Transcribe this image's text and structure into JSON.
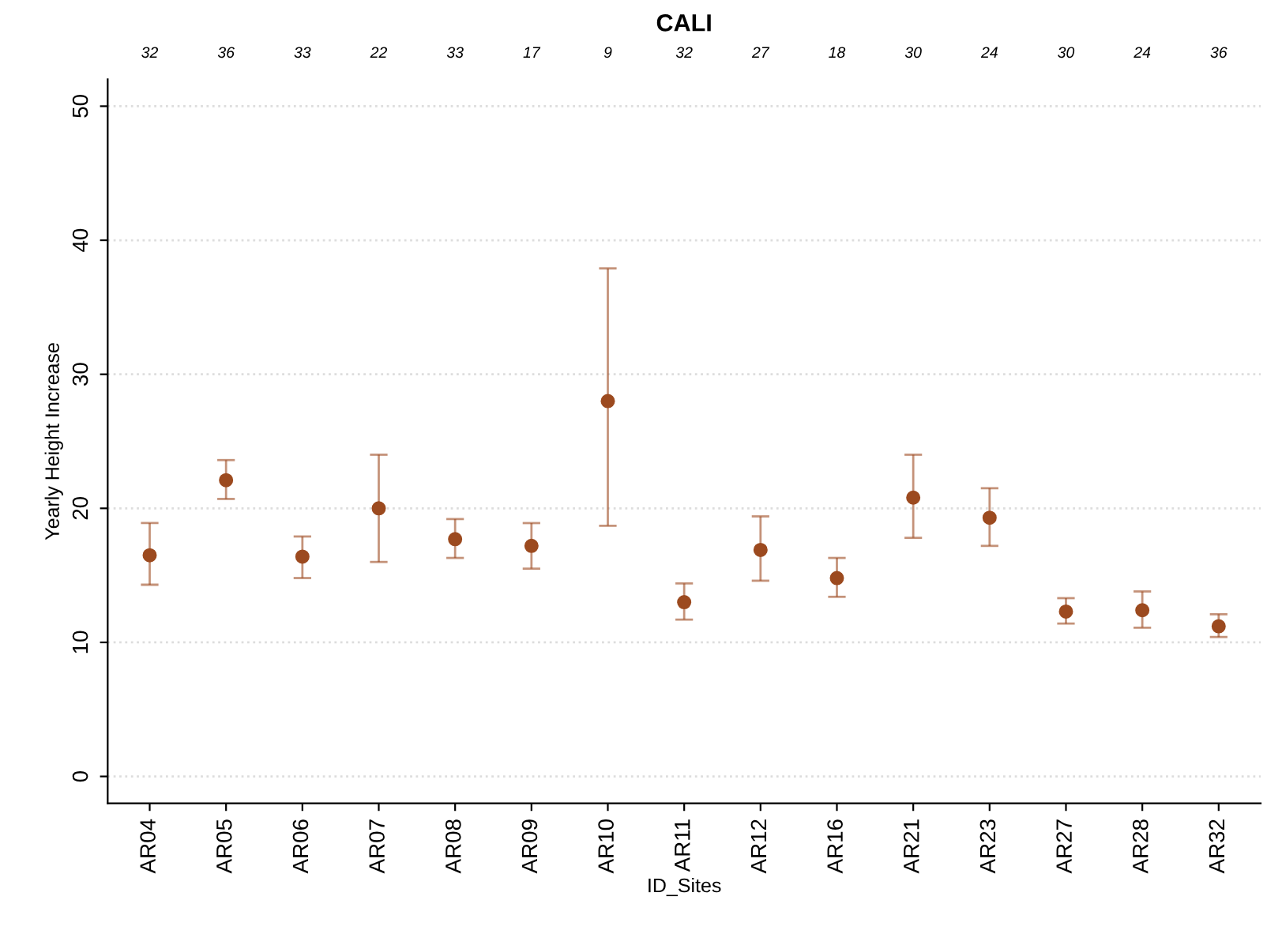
{
  "chart_data": {
    "type": "scatter",
    "title": "CALI",
    "xlabel": "ID_Sites",
    "ylabel": "Yearly Height Increase",
    "categories": [
      "AR04",
      "AR05",
      "AR06",
      "AR07",
      "AR08",
      "AR09",
      "AR10",
      "AR11",
      "AR12",
      "AR16",
      "AR21",
      "AR23",
      "AR27",
      "AR28",
      "AR32"
    ],
    "series": [
      {
        "color": "#9c4a1f",
        "values": [
          16.5,
          22.1,
          16.4,
          20.0,
          17.7,
          17.2,
          28.0,
          13.0,
          16.9,
          14.8,
          20.8,
          19.3,
          12.3,
          12.4,
          11.2
        ],
        "errors": [
          [
            14.3,
            18.9
          ],
          [
            20.7,
            23.6
          ],
          [
            14.8,
            17.9
          ],
          [
            16.0,
            24.0
          ],
          [
            16.3,
            19.2
          ],
          [
            15.5,
            18.9
          ],
          [
            18.7,
            37.9
          ],
          [
            11.7,
            14.4
          ],
          [
            14.6,
            19.4
          ],
          [
            13.4,
            16.3
          ],
          [
            17.8,
            24.0
          ],
          [
            17.2,
            21.5
          ],
          [
            11.4,
            13.3
          ],
          [
            11.1,
            13.8
          ],
          [
            10.4,
            12.1
          ]
        ]
      }
    ],
    "annotations": [
      "32",
      "36",
      "33",
      "22",
      "33",
      "17",
      "9",
      "32",
      "27",
      "18",
      "30",
      "24",
      "30",
      "24",
      "36"
    ],
    "ylim": [
      -2,
      52
    ],
    "yticks": [
      0,
      10,
      20,
      30,
      40,
      50
    ],
    "grid": "y",
    "marker": "circle"
  }
}
